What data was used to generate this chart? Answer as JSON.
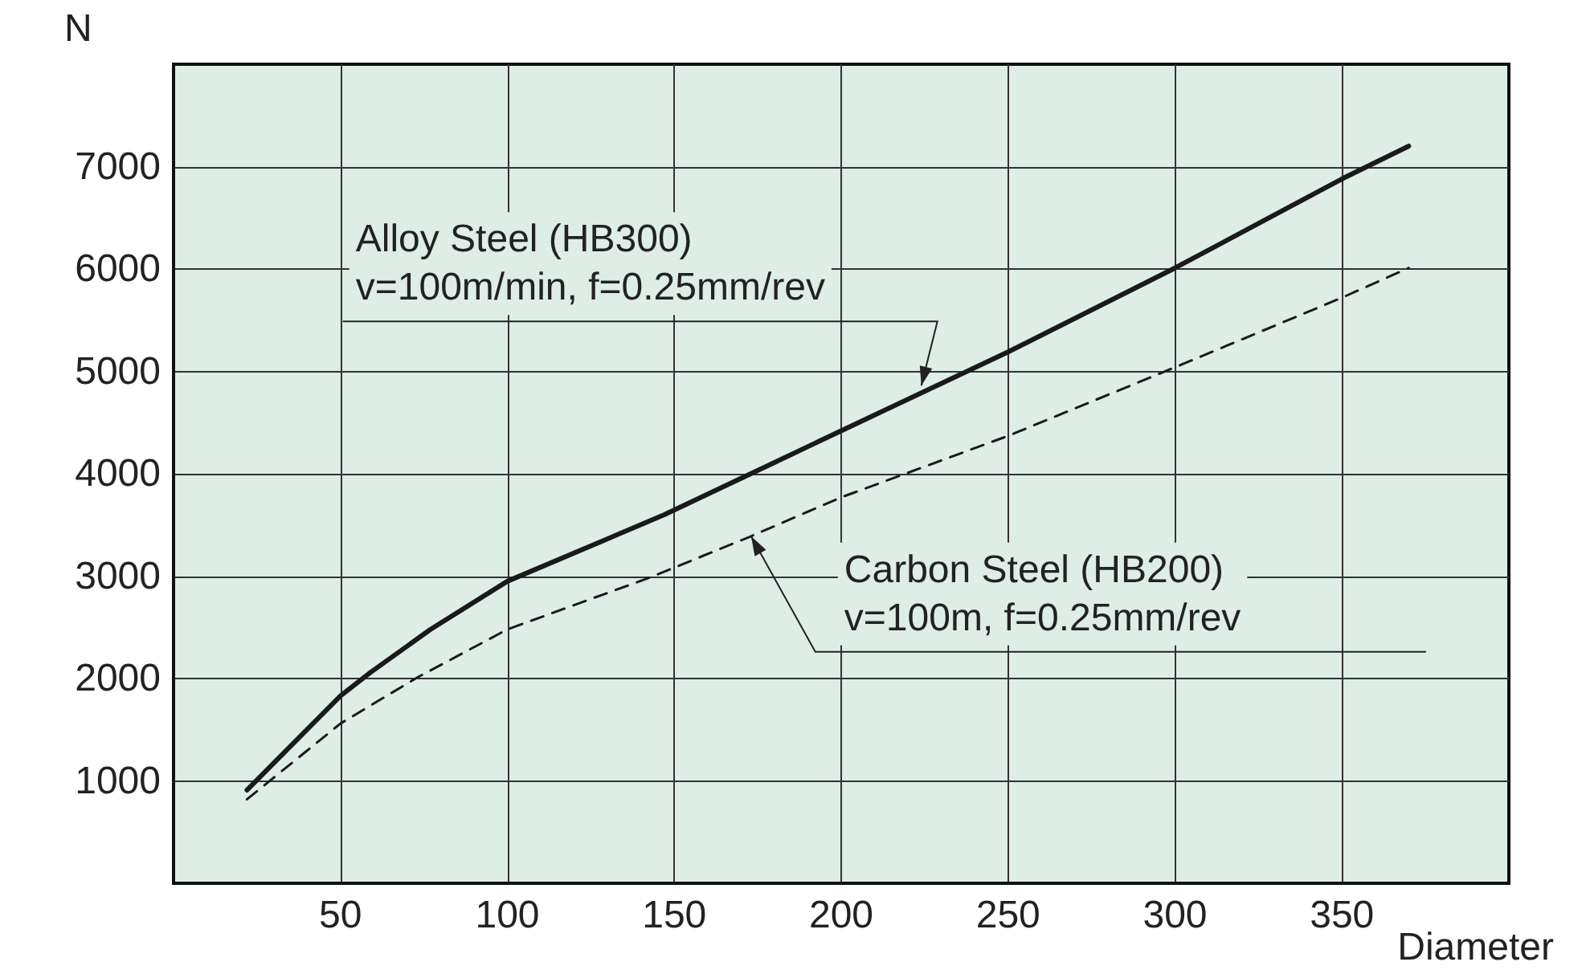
{
  "chart_data": {
    "type": "line",
    "ylabel": "N",
    "xlabel": "Diameter",
    "x": [
      22,
      50,
      59,
      77,
      100,
      147,
      180,
      200,
      250,
      300,
      350,
      370
    ],
    "xlim": [
      0,
      400
    ],
    "xticks": [
      50,
      100,
      150,
      200,
      250,
      300,
      350
    ],
    "ylim": [
      0,
      8000
    ],
    "yticks": [
      1000,
      2000,
      3000,
      4000,
      5000,
      6000,
      7000
    ],
    "series": [
      {
        "color": "#1a1a1a",
        "line_style": "solid",
        "values": [
          910,
          1830,
          2060,
          2480,
          2950,
          3600,
          4110,
          4420,
          5190,
          6010,
          6880,
          7200
        ]
      },
      {
        "color": "#1a1a1a",
        "line_style": "dashed",
        "x": [
          22,
          50,
          73,
          100,
          143,
          173,
          200,
          250,
          300,
          350,
          370
        ],
        "values": [
          820,
          1560,
          2010,
          2480,
          2990,
          3390,
          3770,
          4370,
          5040,
          5720,
          6010
        ]
      }
    ],
    "annotations": [
      {
        "text": "Alloy Steel (HB300)\nv=100m/min, f=0.25mm/rev",
        "x": 224,
        "y": 4860
      },
      {
        "text": "Carbon Steel (HB200)\nv=100m, f=0.25mm/rev",
        "x": 173,
        "y": 3390
      }
    ],
    "grid": true,
    "marker": "none"
  }
}
